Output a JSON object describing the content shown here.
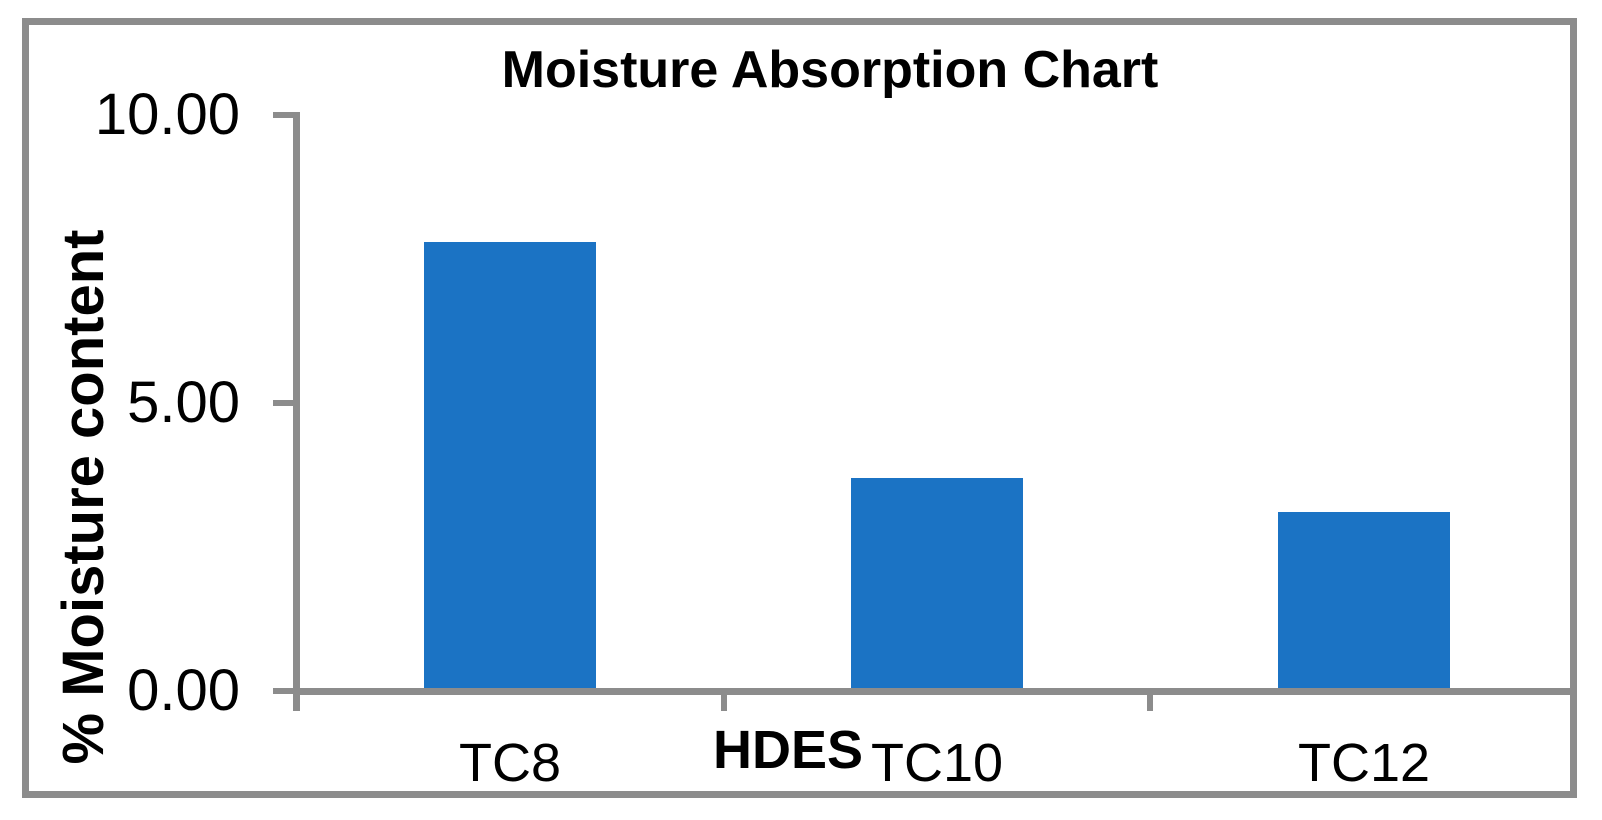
{
  "chart_data": {
    "type": "bar",
    "title": "Moisture Absorption Chart",
    "x_axis_title": "HDES",
    "y_axis_title": "% Moisture content",
    "categories": [
      "TC8",
      "TC10",
      "TC12"
    ],
    "values": [
      7.8,
      3.7,
      3.1
    ],
    "y_ticks": [
      {
        "value": 0,
        "label": "0.00"
      },
      {
        "value": 5,
        "label": "5.00"
      },
      {
        "value": 10,
        "label": "10.00"
      }
    ],
    "ylim": [
      0,
      10
    ],
    "grid": false,
    "legend": false,
    "bar_color": "#1B73C4",
    "axis_color": "#8C8C8C",
    "frame_color": "#8C8C8C",
    "background_color": "#FFFFFF"
  }
}
